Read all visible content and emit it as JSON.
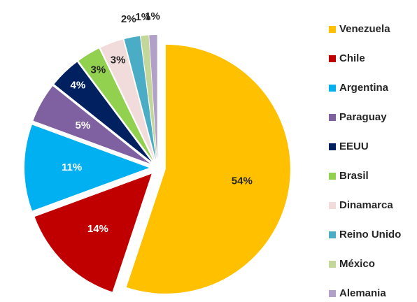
{
  "chart_data": {
    "type": "pie",
    "categories": [
      "Venezuela",
      "Chile",
      "Argentina",
      "Paraguay",
      "EEUU",
      "Brasil",
      "Dinamarca",
      "Reino Unido",
      "México",
      "Alemania"
    ],
    "values": [
      54,
      14,
      11,
      5,
      4,
      3,
      3,
      2,
      1,
      1
    ],
    "value_labels": [
      "54%",
      "14%",
      "11%",
      "5%",
      "4%",
      "3%",
      "3%",
      "2%",
      "1%",
      "1%"
    ],
    "colors": [
      "#FFC000",
      "#C00000",
      "#00B0F0",
      "#7F60A0",
      "#002060",
      "#92D050",
      "#F2DCDB",
      "#4BACC6",
      "#C4D79B",
      "#B1A0C7"
    ],
    "legend": "right"
  }
}
